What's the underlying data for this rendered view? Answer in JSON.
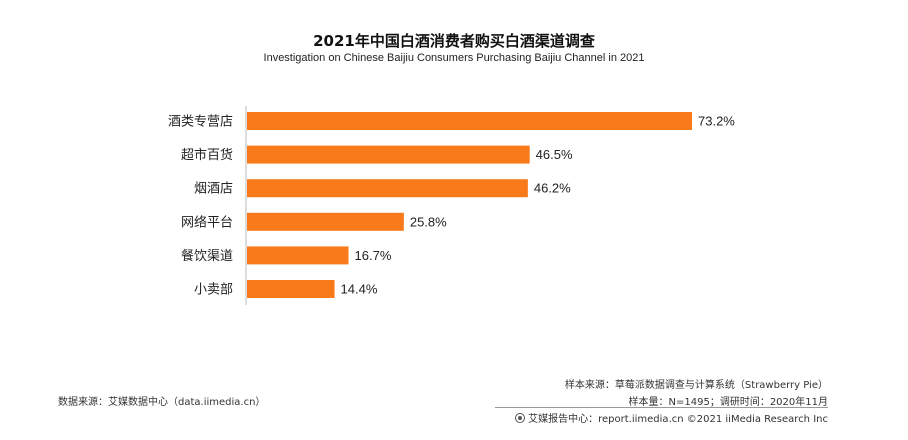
{
  "chart_data": {
    "type": "bar",
    "orientation": "horizontal",
    "title": "2021年中国白酒消费者购买白酒渠道调查",
    "subtitle": "Investigation on Chinese Baijiu Consumers Purchasing Baijiu Channel in 2021",
    "categories": [
      "酒类专营店",
      "超市百货",
      "烟酒店",
      "网络平台",
      "餐饮渠道",
      "小卖部"
    ],
    "values": [
      73.2,
      46.5,
      46.2,
      25.8,
      16.7,
      14.4
    ],
    "value_labels": [
      "73.2%",
      "46.5%",
      "46.2%",
      "25.8%",
      "16.7%",
      "14.4%"
    ],
    "unit": "%",
    "xlim": [
      0,
      73.2
    ],
    "bar_color": "#F97A1A",
    "grid": false,
    "legend": "none"
  },
  "footer": {
    "source": "数据来源：艾媒数据中心（data.iimedia.cn）",
    "sample_source": "样本来源：草莓派数据调查与计算系统（Strawberry Pie）",
    "sample_size": "样本量：N=1495；调研时间：2020年11月",
    "copyright": "艾媒报告中心：report.iimedia.cn  ©2021  iiMedia Research  Inc"
  }
}
